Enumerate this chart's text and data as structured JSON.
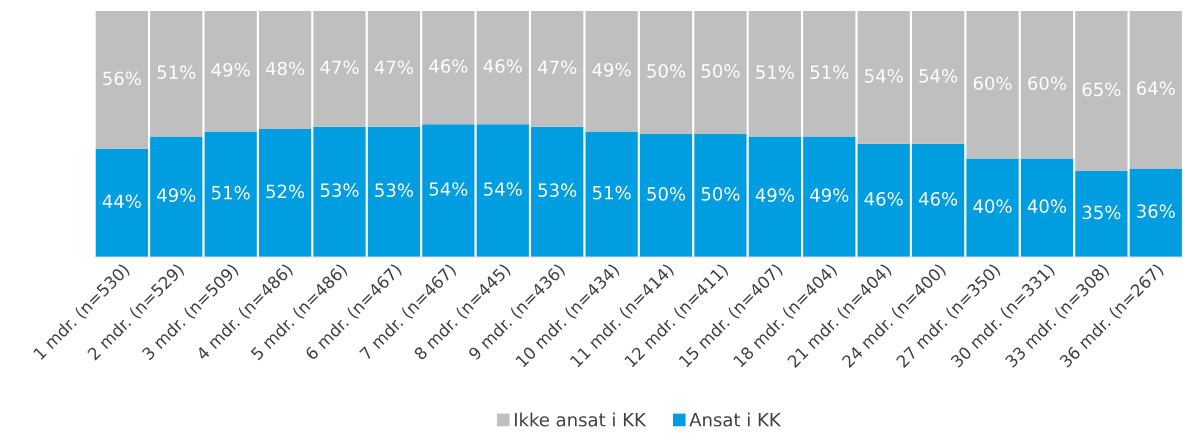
{
  "chart_data": {
    "type": "bar",
    "stacked": true,
    "categories": [
      "1 mdr. (n=530)",
      "2 mdr. (n=529)",
      "3 mdr. (n=509)",
      "4 mdr. (n=486)",
      "5 mdr. (n=486)",
      "6 mdr. (n=467)",
      "7 mdr. (n=467)",
      "8 mdr. (n=445)",
      "9 mdr. (n=436)",
      "10 mdr. (n=434)",
      "11 mdr. (n=414)",
      "12 mdr. (n=411)",
      "15 mdr. (n=407)",
      "18 mdr. (n=404)",
      "21 mdr. (n=404)",
      "24 mdr. (n=400)",
      "27 mdr. (n=350)",
      "30 mdr. (n=331)",
      "33 mdr. (n=308)",
      "36 mdr. (n=267)"
    ],
    "series": [
      {
        "name": "Ansat i KK",
        "color": "#009de0",
        "values": [
          44,
          49,
          51,
          52,
          53,
          53,
          54,
          54,
          53,
          51,
          50,
          50,
          49,
          49,
          46,
          46,
          40,
          40,
          35,
          36
        ],
        "value_labels": [
          "44%",
          "49%",
          "51%",
          "52%",
          "53%",
          "53%",
          "54%",
          "54%",
          "53%",
          "51%",
          "50%",
          "50%",
          "49%",
          "49%",
          "46%",
          "46%",
          "40%",
          "40%",
          "35%",
          "36%"
        ]
      },
      {
        "name": "Ikke ansat i KK",
        "color": "#bfbfbf",
        "values": [
          56,
          51,
          49,
          48,
          47,
          47,
          46,
          46,
          47,
          49,
          50,
          50,
          51,
          51,
          54,
          54,
          60,
          60,
          65,
          64
        ],
        "value_labels": [
          "56%",
          "51%",
          "49%",
          "48%",
          "47%",
          "47%",
          "46%",
          "46%",
          "47%",
          "49%",
          "50%",
          "50%",
          "51%",
          "51%",
          "54%",
          "54%",
          "60%",
          "60%",
          "65%",
          "64%"
        ]
      }
    ],
    "legend": "bottom",
    "grid": false,
    "tick_labels": "x"
  }
}
